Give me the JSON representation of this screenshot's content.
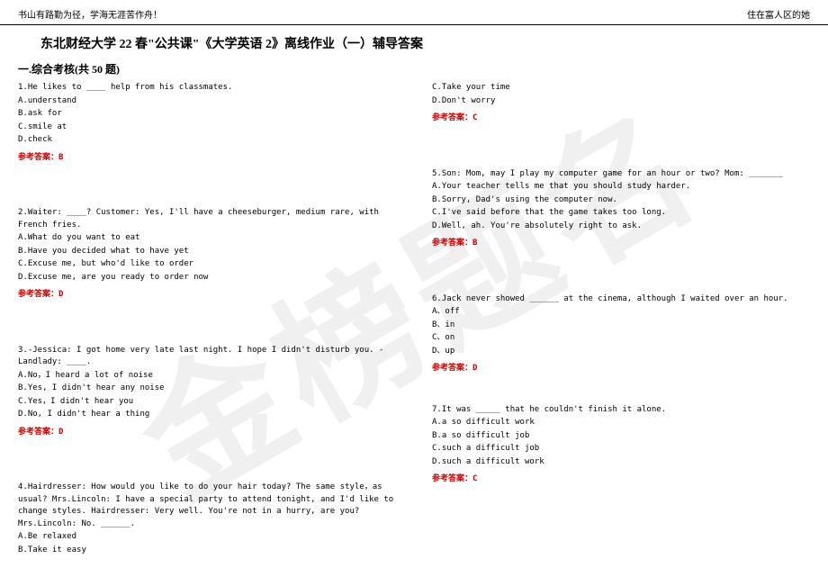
{
  "header": {
    "left": "书山有路勤为径，学海无涯苦作舟！",
    "right": "住在富人区的她"
  },
  "title": "东北财经大学 22 春\"公共课\"《大学英语 2》离线作业（一）辅导答案",
  "section": "一.综合考核(共 50 题)",
  "watermark": "金榜题名",
  "answer_label_prefix": "参考答案：",
  "questions_left": [
    {
      "stem": "1.He likes to ____ help from his classmates.",
      "options": [
        "A.understand",
        "B.ask for",
        "C.smile at",
        "D.check"
      ],
      "answer": "B"
    },
    {
      "stem": "2.Waiter: ____? Customer: Yes, I'll have a cheeseburger, medium rare, with French fries.",
      "options": [
        "A.What do you want to eat",
        "B.Have you decided what to have yet",
        "C.Excuse me, but who'd like to order",
        "D.Excuse me, are you ready to order now"
      ],
      "answer": "D"
    },
    {
      "stem": "3.-Jessica: I got home very late last night. I hope I didn't disturb you. -Landlady: ____.",
      "options": [
        "A.No，I heard a lot of noise",
        "B.Yes, I didn't hear any noise",
        "C.Yes，I didn't hear you",
        "D.No, I didn't hear a thing"
      ],
      "answer": "D"
    },
    {
      "stem": "4.Hairdresser: How would you like to do your hair today? The same style，as usual? Mrs.Lincoln: I have a special party to attend tonight, and I'd like to change styles. Hairdresser: Very well. You're not in a hurry, are you? Mrs.Lincoln: No. ______.",
      "options": [
        "A.Be relaxed",
        "B.Take it easy"
      ],
      "answer": null
    }
  ],
  "questions_right_top_options": [
    "C.Take your time",
    "D.Don't worry"
  ],
  "questions_right_top_answer": "C",
  "questions_right": [
    {
      "stem": "5.Son: Mom, may I play my computer game for an hour or two? Mom: _______",
      "options": [
        "A.Your teacher tells me that you should study harder.",
        "B.Sorry, Dad's using the computer now.",
        "C.I've said before that the game takes too long.",
        "D.Well, ah. You're absolutely right to ask."
      ],
      "answer": "B"
    },
    {
      "stem": "6.Jack never showed ______ at the cinema, although I waited over an hour.",
      "options": [
        "A、off",
        "B、in",
        "C、on",
        "D、up"
      ],
      "answer": "D"
    },
    {
      "stem": "7.It was _____ that he couldn't finish it alone.",
      "options": [
        "A.a so difficult work",
        "B.a so difficult job",
        "C.such a difficult job",
        "D.such a difficult work"
      ],
      "answer": "C"
    }
  ]
}
